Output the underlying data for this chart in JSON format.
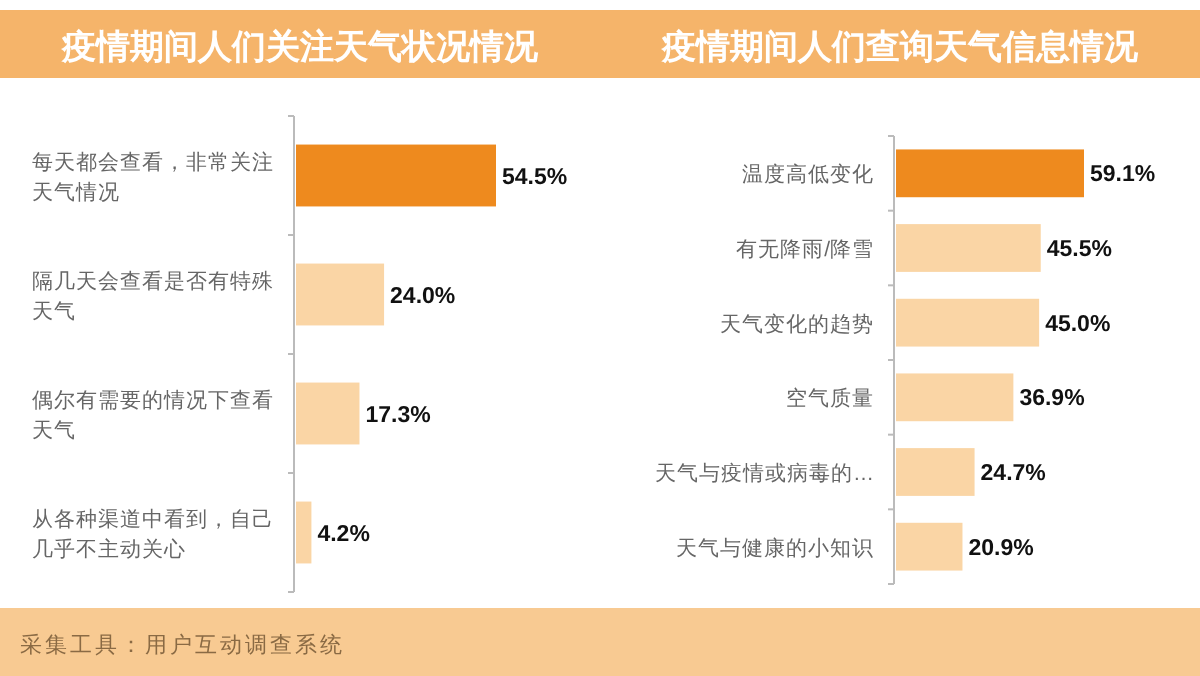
{
  "chart_data": [
    {
      "type": "bar",
      "orientation": "horizontal",
      "title": "疫情期间人们关注天气状况情况",
      "categories": [
        "每天都会查看，非常关注天气情况",
        "隔几天会查看是否有特殊天气",
        "偶尔有需要的情况下查看天气",
        "从各种渠道中看到，自己几乎不主动关心"
      ],
      "values": [
        54.5,
        24.0,
        17.3,
        4.2
      ],
      "value_labels": [
        "54.5%",
        "24.0%",
        "17.3%",
        "4.2%"
      ],
      "colors": [
        "#ee8a1e",
        "#fad5a5",
        "#fad5a5",
        "#fad5a5"
      ],
      "annotations": [
        "采集工具：用户互动调查系统"
      ]
    },
    {
      "type": "bar",
      "orientation": "horizontal",
      "title": "疫情期间人们查询天气信息情况",
      "categories": [
        "温度高低变化",
        "有无降雨/降雪",
        "天气变化的趋势",
        "空气质量",
        "天气与疫情或病毒的…",
        "天气与健康的小知识"
      ],
      "values": [
        59.1,
        45.5,
        45.0,
        36.9,
        24.7,
        20.9
      ],
      "value_labels": [
        "59.1%",
        "45.5%",
        "45.0%",
        "36.9%",
        "24.7%",
        "20.9%"
      ],
      "colors": [
        "#ee8a1e",
        "#fad5a5",
        "#fad5a5",
        "#fad5a5",
        "#fad5a5",
        "#fad5a5"
      ]
    }
  ]
}
